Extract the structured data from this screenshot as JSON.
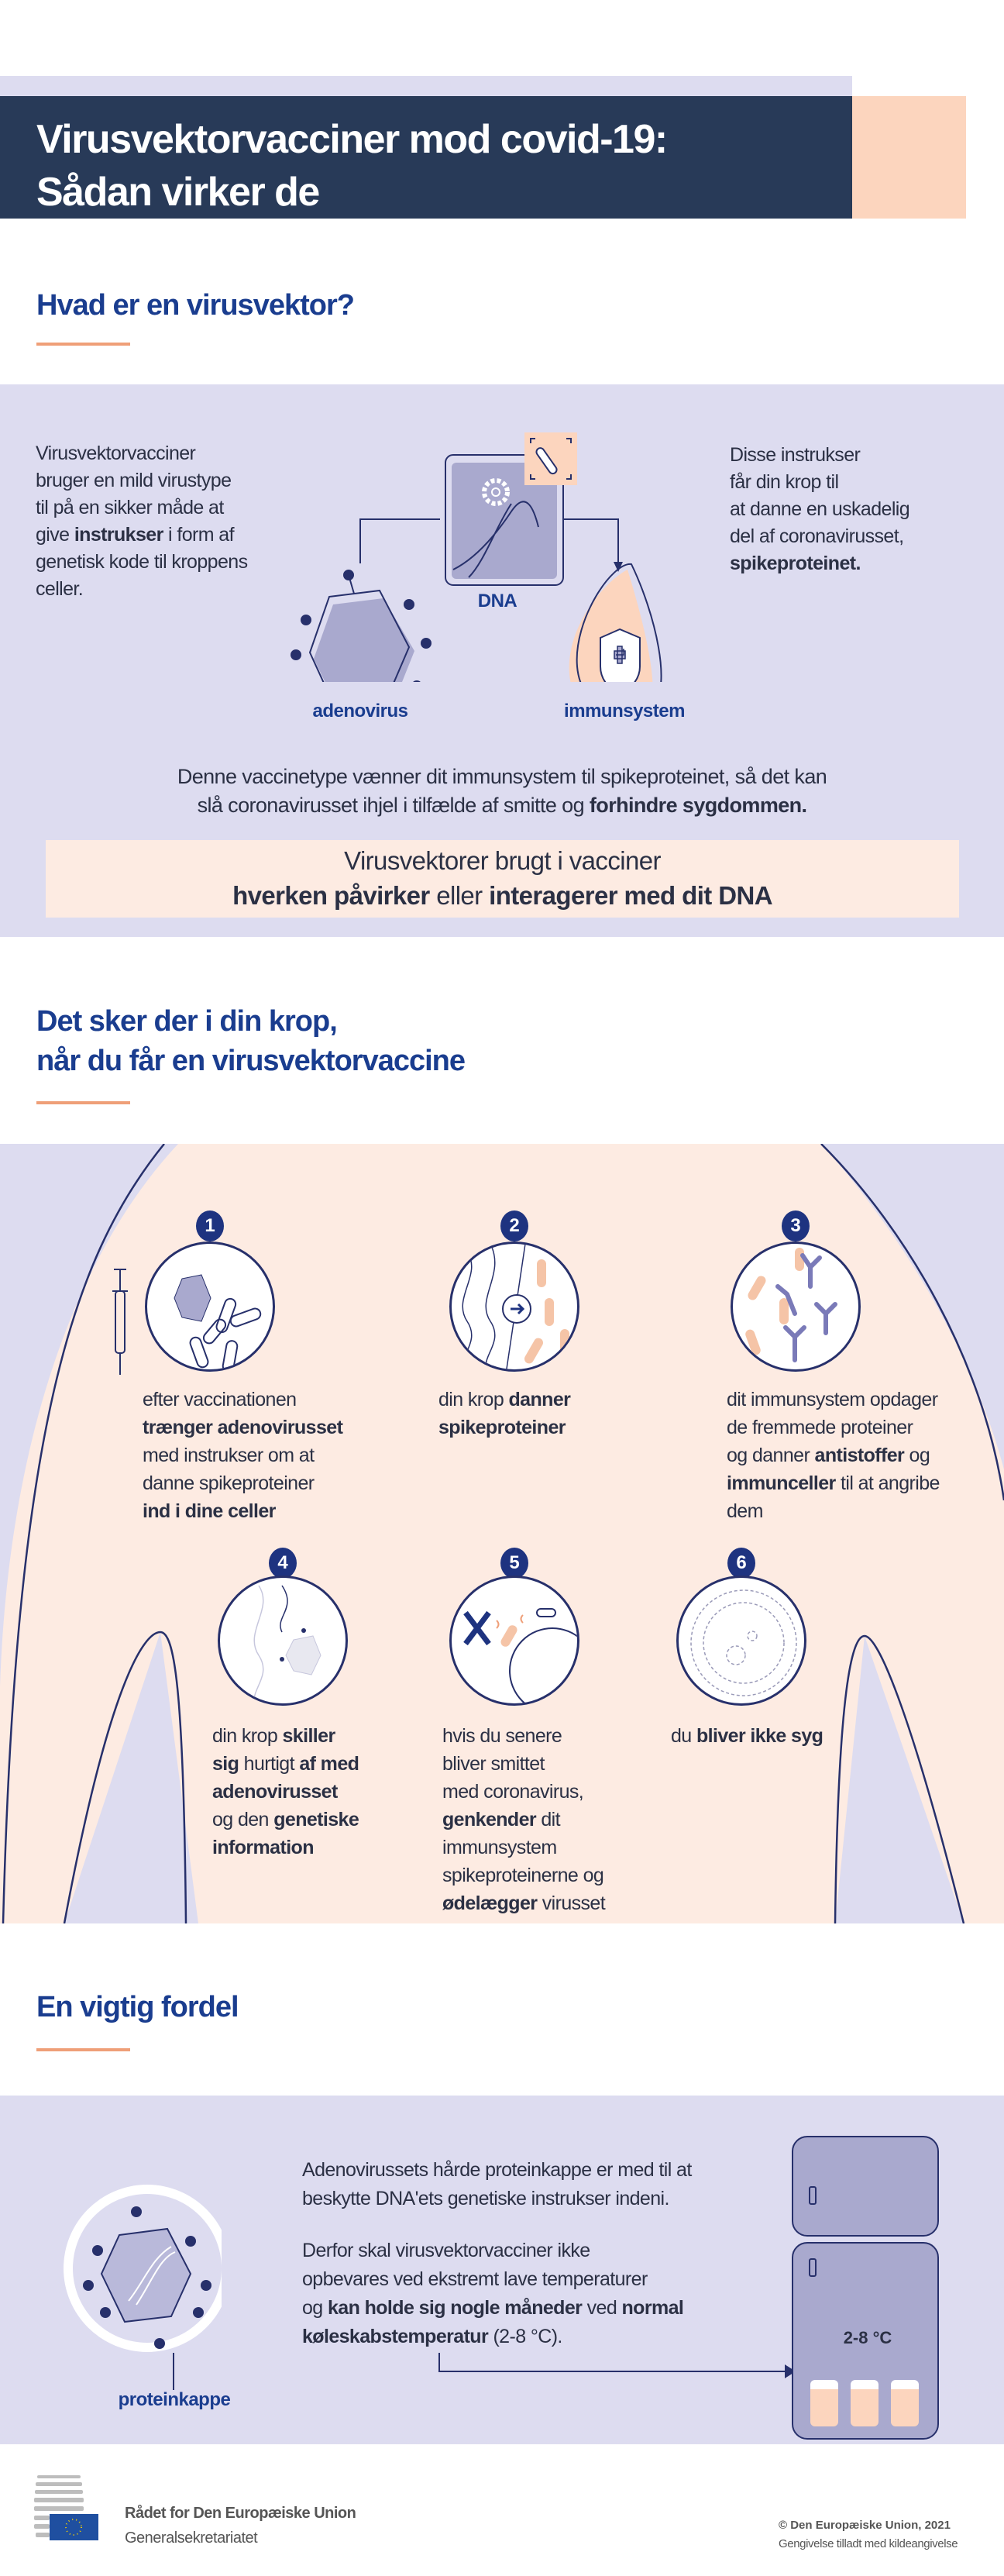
{
  "colors": {
    "navy": "#283a58",
    "lavender": "#dddcf0",
    "peach": "#fcd5be",
    "light_peach": "#fdebe2",
    "heading_blue": "#1a3d8f",
    "accent": "#ef9f78"
  },
  "header": {
    "title_line1": "Virusvektorvacciner mod covid-19:",
    "title_line2": "Sådan virker de"
  },
  "section1": {
    "heading": "Hvad er en virusvektor?",
    "left_text": [
      [
        {
          "t": "Virusvektorvacciner"
        }
      ],
      [
        {
          "t": "bruger en mild virustype"
        }
      ],
      [
        {
          "t": "til på en sikker måde at"
        }
      ],
      [
        {
          "t": "give "
        },
        {
          "t": "instrukser",
          "b": true
        },
        {
          "t": " i form af"
        }
      ],
      [
        {
          "t": "genetisk kode til kroppens"
        }
      ],
      [
        {
          "t": "celler."
        }
      ]
    ],
    "right_text": [
      [
        {
          "t": "Disse instrukser"
        }
      ],
      [
        {
          "t": "får din krop til"
        }
      ],
      [
        {
          "t": "at danne en uskadelig"
        }
      ],
      [
        {
          "t": "del af coronavirusset,"
        }
      ],
      [
        {
          "t": "spikeproteinet.",
          "b": true
        }
      ]
    ],
    "label_dna": "DNA",
    "label_adenovirus": "adenovirus",
    "label_immunsystem": "immunsystem",
    "summary": [
      [
        {
          "t": "Denne vaccinetype vænner dit immunsystem til spikeproteinet, så det kan"
        }
      ],
      [
        {
          "t": "slå coronavirusset ihjel i tilfælde af smitte og "
        },
        {
          "t": "forhindre sygdommen.",
          "b": true
        }
      ]
    ],
    "callout": [
      [
        {
          "t": "Virusvektorer brugt i vacciner"
        }
      ],
      [
        {
          "t": "hverken påvirker",
          "b": true
        },
        {
          "t": " eller "
        },
        {
          "t": "interagerer med dit DNA",
          "b": true
        }
      ]
    ]
  },
  "section2": {
    "heading_line1": "Det sker der i din krop,",
    "heading_line2": "når du får en virusvektorvaccine",
    "steps": [
      {
        "num": "1",
        "text": [
          [
            {
              "t": "efter vaccinationen"
            }
          ],
          [
            {
              "t": "trænger adenovirusset",
              "b": true
            }
          ],
          [
            {
              "t": "med instrukser om at"
            }
          ],
          [
            {
              "t": "danne spikeproteiner"
            }
          ],
          [
            {
              "t": "ind i dine celler",
              "b": true
            }
          ]
        ]
      },
      {
        "num": "2",
        "text": [
          [
            {
              "t": "din krop "
            },
            {
              "t": "danner",
              "b": true
            }
          ],
          [
            {
              "t": "spikeproteiner",
              "b": true
            }
          ]
        ]
      },
      {
        "num": "3",
        "text": [
          [
            {
              "t": "dit immunsystem opdager"
            }
          ],
          [
            {
              "t": "de fremmede proteiner"
            }
          ],
          [
            {
              "t": "og danner "
            },
            {
              "t": "antistoffer",
              "b": true
            },
            {
              "t": " og"
            }
          ],
          [
            {
              "t": "immunceller",
              "b": true
            },
            {
              "t": " til at angribe"
            }
          ],
          [
            {
              "t": "dem"
            }
          ]
        ]
      },
      {
        "num": "4",
        "text": [
          [
            {
              "t": "din krop "
            },
            {
              "t": "skiller",
              "b": true
            }
          ],
          [
            {
              "t": "sig",
              "b": true
            },
            {
              "t": " hurtigt "
            },
            {
              "t": "af med",
              "b": true
            }
          ],
          [
            {
              "t": "adenovirusset",
              "b": true
            }
          ],
          [
            {
              "t": "og den "
            },
            {
              "t": "genetiske",
              "b": true
            }
          ],
          [
            {
              "t": "information",
              "b": true
            }
          ]
        ]
      },
      {
        "num": "5",
        "text": [
          [
            {
              "t": "hvis du senere"
            }
          ],
          [
            {
              "t": "bliver smittet"
            }
          ],
          [
            {
              "t": "med coronavirus,"
            }
          ],
          [
            {
              "t": "genkender",
              "b": true
            },
            {
              "t": " dit"
            }
          ],
          [
            {
              "t": "immunsystem"
            }
          ],
          [
            {
              "t": "spikeproteinerne og"
            }
          ],
          [
            {
              "t": "ødelægger",
              "b": true
            },
            {
              "t": " virusset"
            }
          ]
        ]
      },
      {
        "num": "6",
        "text": [
          [
            {
              "t": "du "
            },
            {
              "t": "bliver ikke syg",
              "b": true
            }
          ]
        ]
      }
    ]
  },
  "section3": {
    "heading": "En vigtig fordel",
    "para1": [
      [
        {
          "t": "Adenovirussets hårde proteinkappe er med til at"
        }
      ],
      [
        {
          "t": "beskytte DNA'ets genetiske instrukser indeni."
        }
      ]
    ],
    "para2": [
      [
        {
          "t": "Derfor skal virusvektorvacciner ikke"
        }
      ],
      [
        {
          "t": "opbevares ved ekstremt lave temperaturer"
        }
      ],
      [
        {
          "t": "og "
        },
        {
          "t": "kan holde sig nogle måneder",
          "b": true
        },
        {
          "t": " ved "
        },
        {
          "t": "normal",
          "b": true
        }
      ],
      [
        {
          "t": "køleskabstemperatur",
          "b": true
        },
        {
          "t": " (2-8 °C)."
        }
      ]
    ],
    "label_proteinkappe": "proteinkappe",
    "fridge_temp": "2-8 °C"
  },
  "footer": {
    "org_name": "Rådet for Den Europæiske Union",
    "org_sub": "Generalsekretariatet",
    "copyright": "© Den Europæiske Union, 2021",
    "license": "Gengivelse tilladt med kildeangivelse"
  }
}
